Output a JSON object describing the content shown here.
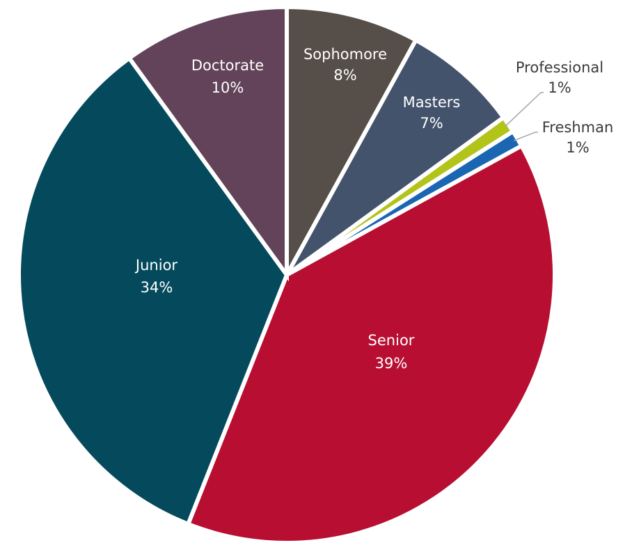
{
  "chart_data": {
    "type": "pie",
    "slices": [
      {
        "label": "Sophomore",
        "value": 8,
        "display": "8%",
        "color": "#564f49",
        "text_color": "#ffffff",
        "label_mode": "inside"
      },
      {
        "label": "Masters",
        "value": 7,
        "display": "7%",
        "color": "#43536b",
        "text_color": "#ffffff",
        "label_mode": "inside"
      },
      {
        "label": "Professional",
        "value": 1,
        "display": "1%",
        "color": "#b2c31a",
        "text_color": "#3a3a3a",
        "label_mode": "leader"
      },
      {
        "label": "Freshman",
        "value": 1,
        "display": "1%",
        "color": "#1a66b3",
        "text_color": "#3a3a3a",
        "label_mode": "leader"
      },
      {
        "label": "Senior",
        "value": 39,
        "display": "39%",
        "color": "#b80e32",
        "text_color": "#ffffff",
        "label_mode": "inside"
      },
      {
        "label": "Junior",
        "value": 34,
        "display": "34%",
        "color": "#044a5c",
        "text_color": "#ffffff",
        "label_mode": "inside"
      },
      {
        "label": "Doctorate",
        "value": 10,
        "display": "10%",
        "color": "#624359",
        "text_color": "#ffffff",
        "label_mode": "inside"
      }
    ]
  }
}
